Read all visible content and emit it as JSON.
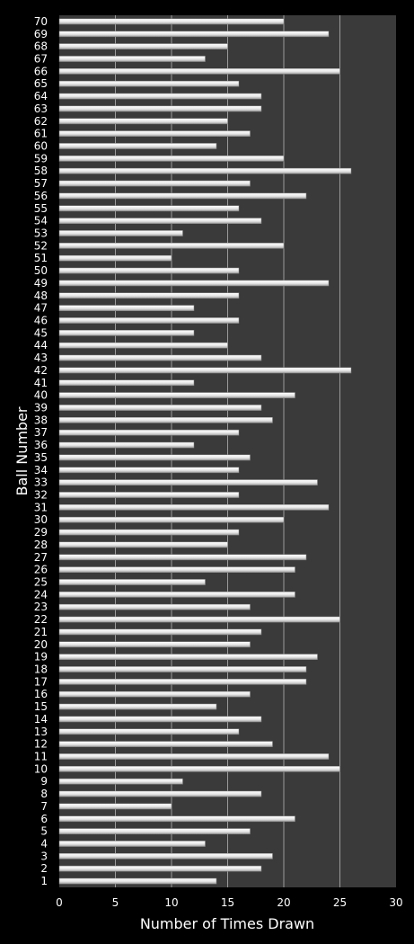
{
  "chart_data": {
    "type": "bar",
    "orientation": "horizontal",
    "xlabel": "Number of Times Drawn",
    "ylabel": "Ball Number",
    "xlim": [
      0,
      30
    ],
    "x_ticks": [
      0,
      5,
      10,
      15,
      20,
      25,
      30
    ],
    "grid": "vertical",
    "colors": {
      "plot_background": "#3a3a3a",
      "page_background": "#000000",
      "bar": "#f2f2f2",
      "grid": "#9a9a9a",
      "text": "#ffffff"
    },
    "categories": [
      "1",
      "2",
      "3",
      "4",
      "5",
      "6",
      "7",
      "8",
      "9",
      "10",
      "11",
      "12",
      "13",
      "14",
      "15",
      "16",
      "17",
      "18",
      "19",
      "20",
      "21",
      "22",
      "23",
      "24",
      "25",
      "26",
      "27",
      "28",
      "29",
      "30",
      "31",
      "32",
      "33",
      "34",
      "35",
      "36",
      "37",
      "38",
      "39",
      "40",
      "41",
      "42",
      "43",
      "44",
      "45",
      "46",
      "47",
      "48",
      "49",
      "50",
      "51",
      "52",
      "53",
      "54",
      "55",
      "56",
      "57",
      "58",
      "59",
      "60",
      "61",
      "62",
      "63",
      "64",
      "65",
      "66",
      "67",
      "68",
      "69",
      "70"
    ],
    "values": [
      14,
      18,
      19,
      13,
      17,
      21,
      10,
      18,
      11,
      25,
      24,
      19,
      16,
      18,
      14,
      17,
      22,
      22,
      23,
      17,
      18,
      25,
      17,
      21,
      13,
      21,
      22,
      15,
      16,
      20,
      24,
      16,
      23,
      16,
      17,
      12,
      16,
      19,
      18,
      21,
      12,
      26,
      18,
      15,
      12,
      16,
      12,
      16,
      24,
      16,
      10,
      20,
      11,
      18,
      16,
      22,
      17,
      26,
      20,
      14,
      17,
      15,
      18,
      18,
      16,
      25,
      13,
      15,
      24,
      20
    ]
  }
}
